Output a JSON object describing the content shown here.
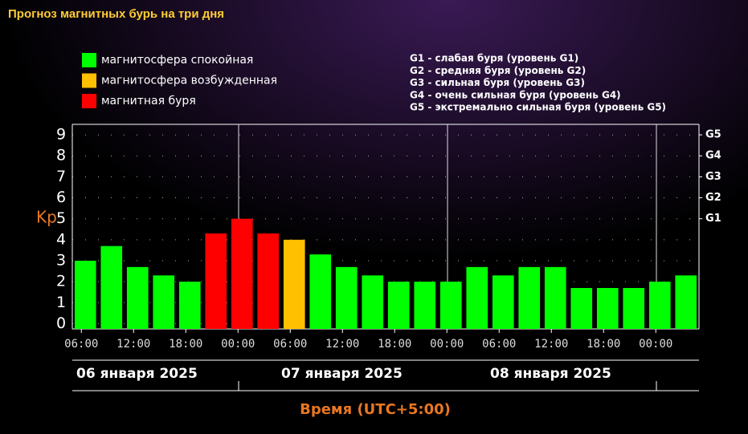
{
  "chart_data": {
    "type": "bar",
    "title": "Прогноз магнитных бурь на три дня",
    "legend": [
      {
        "label": "магнитосфера спокойная",
        "color": "#00ff00"
      },
      {
        "label": "магнитосфера возбужденная",
        "color": "#ffc000"
      },
      {
        "label": "магнитная буря",
        "color": "#ff0000"
      }
    ],
    "g_legend": [
      "G1 - слабая буря (уровень G1)",
      "G2 - средняя буря (уровень G2)",
      "G3 - сильная буря (уровень G3)",
      "G4 - очень сильная буря (уровень G4)",
      "G5 - экстремально сильная буря (уровень G5)"
    ],
    "ylabel": "Kp",
    "xlabel": "Время (UTC+5:00)",
    "days": [
      "06 января 2025",
      "07 января 2025",
      "08 января 2025"
    ],
    "categories": [
      "06:00",
      null,
      "12:00",
      null,
      "18:00",
      null,
      "00:00",
      null,
      "06:00",
      null,
      "12:00",
      null,
      "18:00",
      null,
      "00:00",
      null,
      "06:00",
      null,
      "12:00",
      null,
      "18:00",
      null,
      "00:00",
      null
    ],
    "values": [
      3.0,
      3.7,
      2.7,
      2.3,
      2.0,
      4.3,
      5.0,
      4.3,
      4.0,
      3.3,
      2.7,
      2.3,
      2.0,
      2.0,
      2.0,
      2.7,
      2.3,
      2.7,
      2.7,
      1.7,
      1.7,
      1.7,
      2.0,
      2.3
    ],
    "colors": [
      "#00ff00",
      "#00ff00",
      "#00ff00",
      "#00ff00",
      "#00ff00",
      "#ff0000",
      "#ff0000",
      "#ff0000",
      "#ffc000",
      "#00ff00",
      "#00ff00",
      "#00ff00",
      "#00ff00",
      "#00ff00",
      "#00ff00",
      "#00ff00",
      "#00ff00",
      "#00ff00",
      "#00ff00",
      "#00ff00",
      "#00ff00",
      "#00ff00",
      "#00ff00",
      "#00ff00"
    ],
    "ylim": [
      -0.25,
      9.5
    ],
    "yticks": [
      0,
      1,
      2,
      3,
      4,
      5,
      6,
      7,
      8,
      9
    ],
    "y2lim": [
      -0.25,
      9.5
    ],
    "y2ticks": [
      {
        "value": 5,
        "label": "G1"
      },
      {
        "value": 6,
        "label": "G2"
      },
      {
        "value": 7,
        "label": "G3"
      },
      {
        "value": 8,
        "label": "G4"
      },
      {
        "value": 9,
        "label": "G5"
      }
    ],
    "grid": true
  }
}
